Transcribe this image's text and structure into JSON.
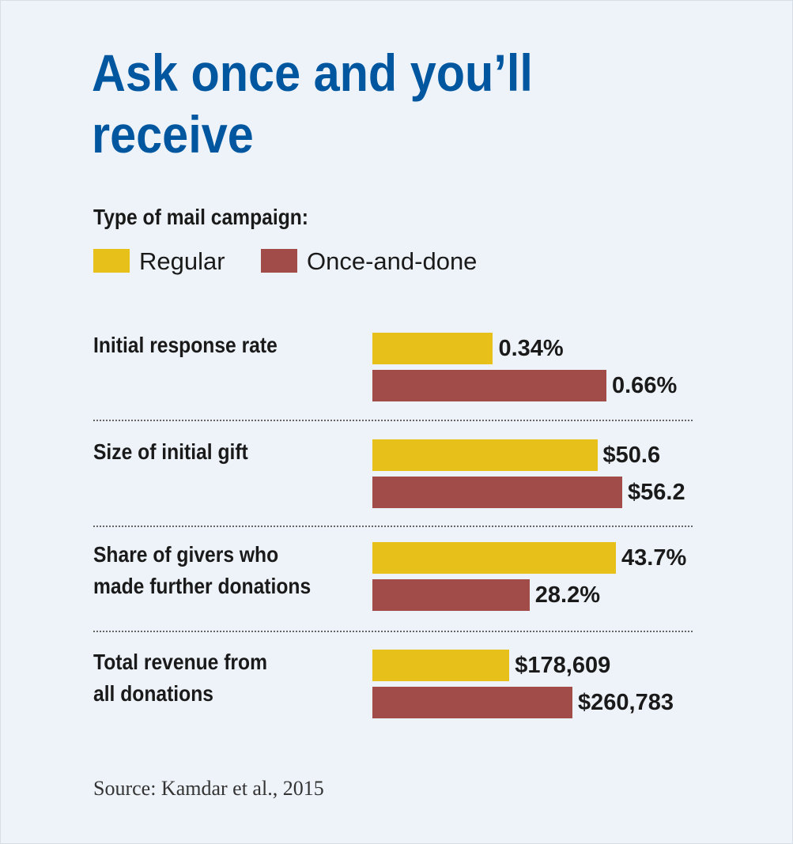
{
  "title_lines": [
    "Ask once and you’ll",
    "receive"
  ],
  "legend": {
    "heading": "Type of mail campaign:",
    "items": [
      {
        "label": "Regular",
        "color": "#e8c01a"
      },
      {
        "label": "Once-and-done",
        "color": "#a14c48"
      }
    ]
  },
  "source": "Source: Kamdar et al., 2015",
  "chart_data": {
    "type": "bar",
    "orientation": "horizontal",
    "grid": false,
    "legend_placement": "top-left",
    "series_names": [
      "Regular",
      "Once-and-done"
    ],
    "groups": [
      {
        "label": [
          "Initial response rate"
        ],
        "values": [
          0.34,
          0.66
        ],
        "value_labels": [
          "0.34%",
          "0.66%"
        ]
      },
      {
        "label": [
          "Size of initial gift"
        ],
        "values": [
          50.6,
          56.2
        ],
        "value_labels": [
          "$50.6",
          "$56.2"
        ]
      },
      {
        "label": [
          "Share of givers who",
          "made further donations"
        ],
        "values": [
          43.7,
          28.2
        ],
        "value_labels": [
          "43.7%",
          "28.2%"
        ]
      },
      {
        "label": [
          "Total revenue from",
          "all donations"
        ],
        "values": [
          178609,
          260783
        ],
        "value_labels": [
          "$178,609",
          "$260,783"
        ]
      }
    ]
  }
}
